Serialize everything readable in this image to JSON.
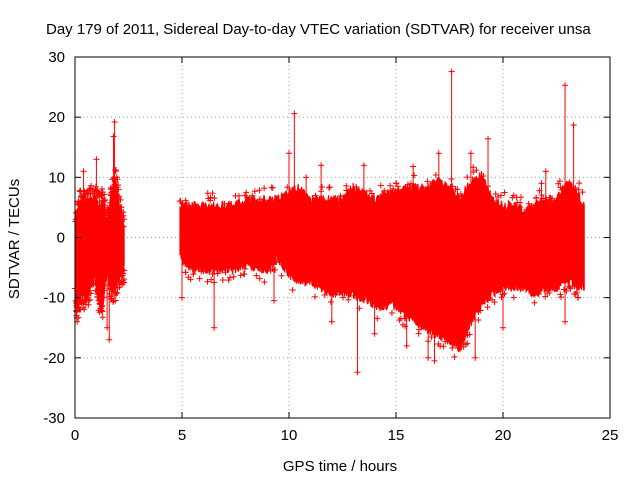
{
  "chart_data": {
    "type": "scatter",
    "title": "Day 179 of 2011, Sidereal Day-to-day VTEC variation (SDTVAR) for receiver unsa",
    "xlabel": "GPS time / hours",
    "ylabel": "SDTVAR / TECUs",
    "xlim": [
      0,
      25
    ],
    "ylim": [
      -30,
      30
    ],
    "xticks": [
      0,
      5,
      10,
      15,
      20,
      25
    ],
    "yticks": [
      -30,
      -20,
      -10,
      0,
      10,
      20,
      30
    ],
    "xtick_labels": [
      "0",
      "5",
      "10",
      "15",
      "20",
      "25"
    ],
    "ytick_labels": [
      "-30",
      "-20",
      "-10",
      "0",
      "10",
      "20",
      "30"
    ],
    "grid": true,
    "marker": "+",
    "color": "#ff0000",
    "envelope": {
      "description": "Dense red point cloud bounds (upper/lower) vs GPS time",
      "x": [
        0.0,
        0.1,
        0.3,
        0.5,
        0.7,
        0.9,
        1.1,
        1.3,
        1.5,
        1.7,
        1.9,
        2.1,
        2.3,
        4.9,
        5.5,
        6.0,
        6.5,
        7.0,
        7.5,
        8.0,
        8.5,
        9.0,
        9.5,
        10.0,
        10.5,
        11.0,
        11.5,
        12.0,
        12.5,
        13.0,
        13.5,
        14.0,
        14.5,
        15.0,
        15.5,
        16.0,
        16.5,
        17.0,
        17.5,
        18.0,
        18.5,
        19.0,
        19.5,
        20.0,
        20.5,
        21.0,
        21.5,
        22.0,
        22.5,
        23.0,
        23.5,
        23.8
      ],
      "upper": [
        2,
        4,
        6,
        5,
        6,
        7,
        5,
        6,
        2,
        7,
        9,
        5,
        1,
        5,
        5,
        5,
        5,
        5,
        5,
        6,
        6,
        6,
        6,
        7,
        8,
        6,
        6,
        6,
        6,
        8,
        7,
        6,
        7,
        7,
        8,
        8,
        8,
        9,
        8,
        6,
        9,
        10,
        6,
        5,
        5,
        4,
        5,
        6,
        6,
        9,
        7,
        5
      ],
      "lower": [
        -8,
        -12,
        -9,
        -10,
        -8,
        -6,
        -10,
        -11,
        -5,
        -9,
        -8,
        -6,
        -5,
        -3,
        -5,
        -5,
        -5,
        -5,
        -5,
        -4,
        -5,
        -5,
        -3,
        -6,
        -7,
        -7,
        -8,
        -9,
        -9,
        -9,
        -10,
        -11,
        -11,
        -11,
        -13,
        -14,
        -15,
        -16,
        -17,
        -18,
        -14,
        -11,
        -9,
        -8,
        -8,
        -8,
        -9,
        -8,
        -8,
        -7,
        -8,
        -8
      ]
    },
    "outliers": [
      {
        "x": 0.1,
        "y": -14
      },
      {
        "x": 0.4,
        "y": 11
      },
      {
        "x": 1.0,
        "y": 13
      },
      {
        "x": 1.5,
        "y": -15
      },
      {
        "x": 1.8,
        "y": 16.8
      },
      {
        "x": 1.85,
        "y": 19.2
      },
      {
        "x": 1.6,
        "y": -17
      },
      {
        "x": 2.3,
        "y": -5.5
      },
      {
        "x": 5.0,
        "y": -10
      },
      {
        "x": 6.5,
        "y": -15
      },
      {
        "x": 8.0,
        "y": 7.5
      },
      {
        "x": 9.3,
        "y": -10.5
      },
      {
        "x": 10.0,
        "y": 14
      },
      {
        "x": 10.25,
        "y": 20.6
      },
      {
        "x": 10.8,
        "y": 10
      },
      {
        "x": 11.5,
        "y": 12
      },
      {
        "x": 12.0,
        "y": -14
      },
      {
        "x": 13.2,
        "y": -22.4
      },
      {
        "x": 13.5,
        "y": 12
      },
      {
        "x": 14.0,
        "y": -16
      },
      {
        "x": 15.0,
        "y": 9
      },
      {
        "x": 15.5,
        "y": -18
      },
      {
        "x": 15.8,
        "y": 11.8
      },
      {
        "x": 16.5,
        "y": -20
      },
      {
        "x": 16.8,
        "y": -20.5
      },
      {
        "x": 17.0,
        "y": 14
      },
      {
        "x": 17.6,
        "y": 27.6
      },
      {
        "x": 18.5,
        "y": 14
      },
      {
        "x": 18.7,
        "y": -20
      },
      {
        "x": 19.3,
        "y": 16.4
      },
      {
        "x": 20.0,
        "y": -15
      },
      {
        "x": 22.0,
        "y": 11
      },
      {
        "x": 22.9,
        "y": 25.3
      },
      {
        "x": 23.3,
        "y": 18.7
      },
      {
        "x": 22.9,
        "y": -14
      },
      {
        "x": 23.5,
        "y": -10
      },
      {
        "x": 21.8,
        "y": 9
      },
      {
        "x": 20.5,
        "y": 7
      }
    ]
  }
}
